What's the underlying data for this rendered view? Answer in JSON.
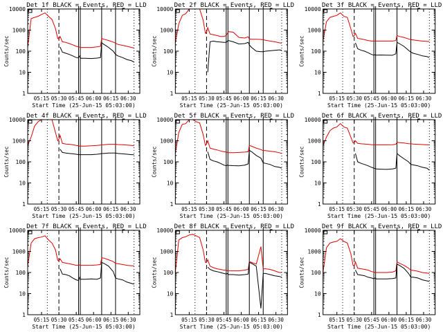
{
  "colors": {
    "events": "#000000",
    "lld": "#e00000",
    "axis": "#000000",
    "background": "#ffffff"
  },
  "chart_data": {
    "type": "line",
    "layout": "3x3 grid",
    "legend": "in title",
    "yscale": "log",
    "ylim": [
      1,
      10000
    ],
    "ytick_labels": [
      "1",
      "10",
      "100",
      "1000",
      "10000"
    ],
    "ylabel": "Counts/sec",
    "xlabel": "Start Time (25-Jun-15 05:03:00)",
    "xlim_minutes_after_start": [
      0,
      97
    ],
    "xtick_labels": [
      "05:15",
      "05:30",
      "05:45",
      "06:00",
      "06:15",
      "06:30"
    ],
    "xtick_minutes_after_start": [
      12,
      27,
      42,
      57,
      72,
      87
    ],
    "markers": {
      "dotted_minutes": [
        17,
        92
      ],
      "dashed_minutes": [
        27
      ],
      "solid_minutes": [
        44,
        45.5,
        64,
        76
      ]
    },
    "x_samples_minutes": [
      0,
      3,
      6,
      9,
      12,
      15,
      18,
      21,
      24,
      26,
      27,
      28,
      30,
      33,
      36,
      39,
      42,
      44,
      45,
      46,
      50,
      55,
      60,
      63,
      64,
      66,
      70,
      74,
      76,
      78,
      82,
      86,
      90,
      92
    ],
    "panels": [
      {
        "title": "Det 1f BLACK = Events, RED = LLD",
        "series": [
          {
            "name": "LLD",
            "values": [
              150,
              3500,
              4000,
              4500,
              5500,
              6500,
              4500,
              3200,
              1200,
              400,
              380,
              500,
              280,
              260,
              230,
              200,
              170,
              160,
              155,
              150,
              150,
              150,
              160,
              170,
              400,
              370,
              320,
              270,
              240,
              210,
              190,
              170,
              150,
              140
            ]
          },
          {
            "name": "Events",
            "values": [
              null,
              null,
              null,
              null,
              null,
              null,
              null,
              null,
              null,
              null,
              null,
              160,
              90,
              80,
              70,
              60,
              50,
              48,
              60,
              46,
              46,
              45,
              47,
              50,
              250,
              210,
              150,
              100,
              70,
              60,
              50,
              40,
              35,
              30
            ]
          }
        ]
      },
      {
        "title": "Det 2f BLACK = Events, RED = LLD",
        "series": [
          {
            "name": "LLD",
            "values": [
              250,
              2000,
              5000,
              6000,
              10000,
              10000,
              10000,
              10000,
              3000,
              700,
              800,
              1300,
              650,
              600,
              550,
              500,
              500,
              550,
              700,
              850,
              800,
              450,
              420,
              480,
              380,
              370,
              370,
              360,
              350,
              330,
              300,
              280,
              250,
              240
            ]
          },
          {
            "name": "Events",
            "values": [
              null,
              null,
              null,
              null,
              null,
              null,
              null,
              null,
              null,
              null,
              null,
              10,
              280,
              300,
              280,
              270,
              260,
              260,
              300,
              320,
              280,
              220,
              230,
              260,
              200,
              150,
              100,
              95,
              95,
              100,
              105,
              110,
              115,
              110
            ]
          }
        ]
      },
      {
        "title": "Det 3f BLACK = Events, RED = LLD",
        "series": [
          {
            "name": "LLD",
            "values": [
              300,
              2500,
              4000,
              4500,
              5000,
              6500,
              4500,
              4000,
              1200,
              500,
              550,
              700,
              400,
              380,
              350,
              320,
              300,
              300,
              300,
              300,
              300,
              300,
              300,
              320,
              550,
              500,
              450,
              380,
              350,
              340,
              320,
              300,
              290,
              290
            ]
          },
          {
            "name": "Events",
            "values": [
              null,
              null,
              null,
              null,
              null,
              null,
              null,
              null,
              null,
              null,
              null,
              250,
              130,
              110,
              100,
              85,
              70,
              65,
              68,
              65,
              66,
              65,
              64,
              75,
              260,
              230,
              170,
              110,
              90,
              80,
              70,
              60,
              55,
              50
            ]
          }
        ]
      },
      {
        "title": "Det 4f BLACK = Events, RED = LLD",
        "series": [
          {
            "name": "LLD",
            "values": [
              600,
              1500,
              5000,
              8000,
              10000,
              10000,
              10000,
              10000,
              2500,
              1000,
              1200,
              1800,
              750,
              700,
              680,
              650,
              600,
              580,
              560,
              560,
              560,
              580,
              600,
              620,
              640,
              650,
              680,
              680,
              680,
              660,
              650,
              620,
              600,
              580
            ]
          },
          {
            "name": "Events",
            "values": [
              null,
              null,
              null,
              null,
              null,
              null,
              null,
              null,
              null,
              null,
              null,
              400,
              280,
              260,
              250,
              240,
              230,
              220,
              220,
              220,
              220,
              220,
              230,
              240,
              250,
              250,
              260,
              260,
              260,
              250,
              240,
              230,
              220,
              220
            ]
          }
        ]
      },
      {
        "title": "Det 5f BLACK = Events, RED = LLD",
        "series": [
          {
            "name": "LLD",
            "values": [
              250,
              2500,
              6000,
              6500,
              10000,
              10000,
              8000,
              7000,
              2000,
              600,
              700,
              1000,
              450,
              400,
              370,
              330,
              300,
              290,
              280,
              270,
              270,
              280,
              290,
              300,
              600,
              550,
              450,
              380,
              340,
              340,
              320,
              300,
              270,
              250
            ]
          },
          {
            "name": "Events",
            "values": [
              null,
              null,
              null,
              null,
              null,
              null,
              null,
              null,
              null,
              null,
              null,
              300,
              130,
              110,
              100,
              85,
              70,
              65,
              70,
              68,
              66,
              65,
              70,
              80,
              350,
              300,
              200,
              150,
              90,
              85,
              75,
              60,
              55,
              50
            ]
          }
        ]
      },
      {
        "title": "Det 6f BLACK = Events, RED = LLD",
        "series": [
          {
            "name": "LLD",
            "values": [
              600,
              1500,
              3000,
              4000,
              4500,
              6500,
              4500,
              4000,
              1500,
              800,
              800,
              1000,
              750,
              720,
              700,
              680,
              650,
              640,
              640,
              640,
              640,
              640,
              650,
              680,
              850,
              820,
              780,
              730,
              720,
              700,
              680,
              660,
              640,
              630
            ]
          },
          {
            "name": "Events",
            "values": [
              null,
              null,
              null,
              null,
              null,
              null,
              null,
              null,
              null,
              null,
              null,
              250,
              100,
              85,
              75,
              65,
              55,
              50,
              48,
              46,
              45,
              44,
              46,
              50,
              250,
              200,
              140,
              100,
              75,
              72,
              65,
              55,
              50,
              40
            ]
          }
        ]
      },
      {
        "title": "Det 7f BLACK = Events, RED = LLD",
        "series": [
          {
            "name": "LLD",
            "values": [
              200,
              2500,
              4000,
              4500,
              4800,
              5500,
              3500,
              2500,
              1200,
              380,
              350,
              450,
              300,
              280,
              260,
              240,
              220,
              220,
              230,
              220,
              220,
              220,
              230,
              240,
              500,
              480,
              400,
              330,
              270,
              260,
              240,
              220,
              210,
              210
            ]
          },
          {
            "name": "Events",
            "values": [
              null,
              null,
              null,
              null,
              null,
              null,
              null,
              null,
              null,
              null,
              null,
              150,
              85,
              80,
              70,
              55,
              45,
              42,
              60,
              48,
              48,
              50,
              48,
              55,
              300,
              270,
              200,
              110,
              55,
              50,
              45,
              35,
              30,
              28
            ]
          }
        ]
      },
      {
        "title": "Det 8f BLACK = Events, RED = LLD",
        "series": [
          {
            "name": "LLD",
            "values": [
              100,
              3500,
              4500,
              5000,
              6000,
              6500,
              5500,
              4500,
              1200,
              300,
              300,
              400,
              200,
              170,
              150,
              140,
              130,
              130,
              120,
              120,
              120,
              120,
              130,
              140,
              330,
              300,
              250,
              1700,
              150,
              150,
              140,
              120,
              100,
              100
            ]
          },
          {
            "name": "Events",
            "values": [
              null,
              null,
              null,
              null,
              null,
              null,
              null,
              null,
              null,
              null,
              null,
              180,
              140,
              120,
              110,
              100,
              90,
              85,
              90,
              80,
              80,
              75,
              80,
              85,
              300,
              270,
              200,
              2,
              90,
              90,
              80,
              70,
              65,
              60
            ]
          }
        ]
      },
      {
        "title": "Det 9f BLACK = Events, RED = LLD",
        "series": [
          {
            "name": "LLD",
            "values": [
              100,
              1500,
              2500,
              2800,
              3000,
              4000,
              3000,
              2500,
              800,
              220,
              200,
              320,
              160,
              150,
              140,
              130,
              110,
              105,
              100,
              100,
              100,
              100,
              105,
              120,
              320,
              280,
              220,
              160,
              130,
              125,
              115,
              100,
              95,
              90
            ]
          },
          {
            "name": "Events",
            "values": [
              null,
              null,
              null,
              null,
              null,
              null,
              null,
              null,
              null,
              null,
              null,
              130,
              80,
              75,
              70,
              60,
              55,
              50,
              55,
              50,
              50,
              50,
              52,
              55,
              250,
              220,
              160,
              90,
              60,
              60,
              55,
              45,
              40,
              38
            ]
          }
        ]
      }
    ]
  }
}
